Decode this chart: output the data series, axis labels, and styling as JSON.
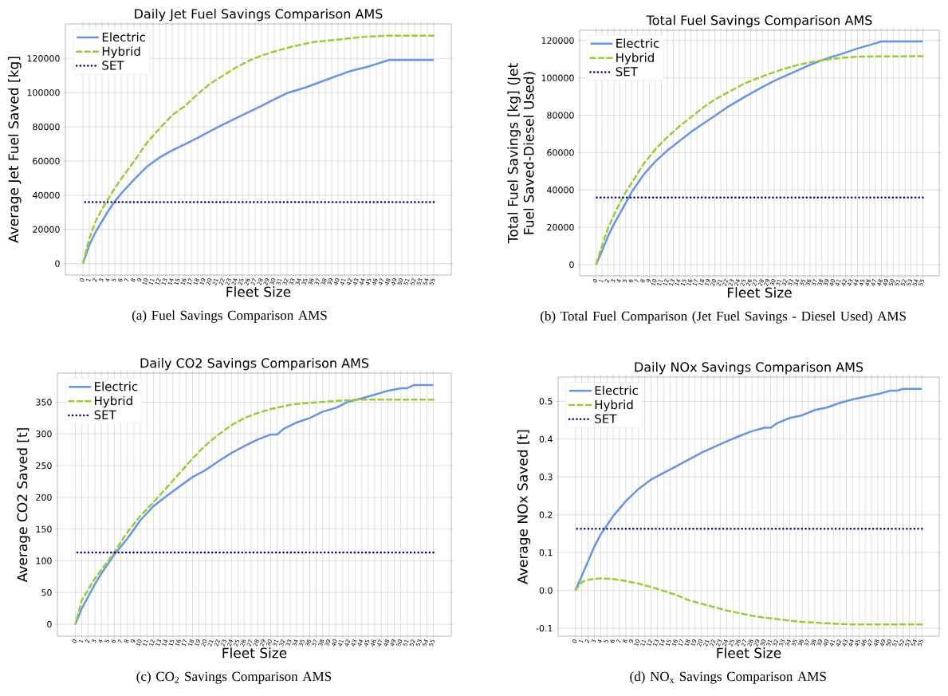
{
  "chart_data": [
    {
      "type": "line",
      "title": "Daily Jet Fuel Savings Comparison AMS",
      "xlabel": "Fleet Size",
      "ylabel": "Average Jet Fuel Saved [kg]",
      "annotations": [
        "(a) Fuel Savings Comparison AMS"
      ],
      "xlim": [
        -2.75,
        57.75
      ],
      "xticks": [
        0,
        1,
        2,
        3,
        4,
        5,
        6,
        7,
        8,
        9,
        10,
        11,
        12,
        13,
        14,
        15,
        16,
        17,
        18,
        19,
        20,
        21,
        22,
        23,
        24,
        25,
        26,
        27,
        28,
        29,
        30,
        31,
        32,
        33,
        34,
        35,
        36,
        37,
        38,
        39,
        40,
        41,
        42,
        43,
        44,
        45,
        46,
        47,
        48,
        49,
        50,
        51,
        52,
        53,
        54,
        55
      ],
      "ylim": [
        -6675,
        140175
      ],
      "yticks": [
        0,
        20000,
        40000,
        60000,
        80000,
        100000,
        120000
      ],
      "grid": true,
      "legend": "top left",
      "series": [
        {
          "name": "Electric",
          "color": "#6495ed",
          "line_style": "solid",
          "x": [
            0,
            1,
            2,
            3,
            4,
            5,
            6,
            8,
            10,
            12,
            14,
            16,
            18,
            20,
            22,
            25,
            28,
            30,
            32,
            35,
            38,
            40,
            42,
            45,
            48,
            55
          ],
          "values": [
            0,
            10900,
            18600,
            24800,
            31000,
            36400,
            41000,
            49100,
            56600,
            62000,
            66200,
            69800,
            73600,
            77500,
            81400,
            86800,
            92200,
            96100,
            99700,
            103100,
            107300,
            110000,
            112700,
            115500,
            119100,
            119100
          ]
        },
        {
          "name": "Hybrid",
          "color": "#9acd32",
          "line_style": "dashed",
          "x": [
            0,
            1,
            2,
            3,
            4,
            5,
            6,
            8,
            10,
            12,
            14,
            16,
            18,
            20,
            22,
            24,
            26,
            28,
            30,
            33,
            36,
            40,
            44,
            48,
            55
          ],
          "values": [
            0,
            14700,
            24800,
            31800,
            38000,
            44200,
            49600,
            59700,
            70500,
            79000,
            86800,
            92200,
            99200,
            105400,
            110000,
            114700,
            118600,
            121700,
            124000,
            127100,
            129500,
            131000,
            132600,
            133300,
            133300
          ]
        },
        {
          "name": "SET",
          "color": "#00008b",
          "line_style": "dotted",
          "x": [
            0,
            55
          ],
          "values": [
            36000,
            36000
          ]
        }
      ]
    },
    {
      "type": "line",
      "title": "Total Fuel Savings Comparison AMS",
      "xlabel": "Fleet Size",
      "ylabel": "Total Fuel Savings [kg] (Jet Fuel Saved-Diesel Used)",
      "annotations": [
        "(b) Total Fuel Comparison (Jet Fuel Savings - Diesel Used) AMS"
      ],
      "xlim": [
        -2.75,
        57.75
      ],
      "xticks": [
        0,
        1,
        2,
        3,
        4,
        5,
        6,
        7,
        8,
        9,
        10,
        11,
        12,
        13,
        14,
        15,
        16,
        17,
        18,
        19,
        20,
        21,
        22,
        23,
        24,
        25,
        26,
        27,
        28,
        29,
        30,
        31,
        32,
        33,
        34,
        35,
        36,
        37,
        38,
        39,
        40,
        41,
        42,
        43,
        44,
        45,
        46,
        47,
        48,
        49,
        50,
        51,
        52,
        53,
        54,
        55
      ],
      "ylim": [
        -5975,
        125475
      ],
      "yticks": [
        0,
        20000,
        40000,
        60000,
        80000,
        100000,
        120000
      ],
      "grid": true,
      "legend": "top left",
      "series": [
        {
          "name": "Electric",
          "color": "#6495ed",
          "line_style": "solid",
          "x": [
            0,
            1,
            2,
            3,
            4,
            5,
            6,
            8,
            10,
            12,
            14,
            16,
            18,
            20,
            22,
            25,
            28,
            30,
            33,
            36,
            39,
            41,
            44,
            47,
            48,
            55
          ],
          "values": [
            0,
            7200,
            15100,
            21600,
            27300,
            33000,
            38900,
            48100,
            55300,
            61100,
            66100,
            71100,
            75400,
            79700,
            84100,
            89800,
            95100,
            98400,
            102700,
            107000,
            110600,
            112500,
            115700,
            118500,
            119500,
            119500
          ]
        },
        {
          "name": "Hybrid",
          "color": "#9acd32",
          "line_style": "dashed",
          "x": [
            0,
            1,
            2,
            3,
            4,
            5,
            6,
            8,
            10,
            12,
            14,
            16,
            18,
            20,
            22,
            25,
            28,
            31,
            34,
            37,
            40,
            44,
            55
          ],
          "values": [
            0,
            10100,
            19400,
            26600,
            33000,
            38800,
            43800,
            53900,
            61800,
            68200,
            74000,
            79000,
            84100,
            88400,
            91900,
            97000,
            100800,
            104200,
            107000,
            108900,
            110300,
            111400,
            111600
          ]
        },
        {
          "name": "SET",
          "color": "#00008b",
          "line_style": "dotted",
          "x": [
            0,
            55
          ],
          "values": [
            36000,
            36000
          ]
        }
      ]
    },
    {
      "type": "line",
      "title": "Daily CO2 Savings Comparison AMS",
      "xlabel": "Fleet Size",
      "ylabel": "Average CO2 Saved [t]",
      "annotations": [
        "(c) CO$_{2}$ Savings Comparison AMS"
      ],
      "xlim": [
        -2.75,
        57.75
      ],
      "xticks": [
        0,
        1,
        2,
        3,
        4,
        5,
        6,
        7,
        8,
        9,
        10,
        11,
        12,
        13,
        14,
        15,
        16,
        17,
        18,
        19,
        20,
        21,
        22,
        23,
        24,
        25,
        26,
        27,
        28,
        29,
        30,
        31,
        32,
        33,
        34,
        35,
        36,
        37,
        38,
        39,
        40,
        41,
        42,
        43,
        44,
        45,
        46,
        47,
        48,
        49,
        50,
        51,
        52,
        53,
        54,
        55
      ],
      "ylim": [
        -18.85,
        395.85
      ],
      "yticks": [
        0,
        50,
        100,
        150,
        200,
        250,
        300,
        350
      ],
      "grid": true,
      "legend": "top left",
      "series": [
        {
          "name": "Electric",
          "color": "#6495ed",
          "line_style": "solid",
          "x": [
            0,
            1,
            2,
            3,
            4,
            5,
            6,
            8,
            10,
            12,
            14,
            16,
            18,
            20,
            22,
            24,
            26,
            28,
            30,
            31,
            32,
            34,
            36,
            38,
            40,
            42,
            44,
            46,
            48,
            50,
            51,
            52,
            55
          ],
          "values": [
            0,
            25,
            44,
            63,
            80,
            95,
            110,
            135,
            164,
            186,
            202,
            217,
            232,
            243,
            257,
            270,
            281,
            291,
            299,
            299,
            308,
            318,
            325,
            335,
            341,
            351,
            356,
            362,
            368,
            372,
            372,
            377,
            377
          ]
        },
        {
          "name": "Hybrid",
          "color": "#9acd32",
          "line_style": "dashed",
          "x": [
            0,
            1,
            2,
            3,
            4,
            5,
            6,
            8,
            10,
            12,
            14,
            16,
            18,
            20,
            22,
            24,
            26,
            28,
            30,
            33,
            36,
            40,
            44,
            55
          ],
          "values": [
            0,
            38,
            55,
            72,
            86,
            99,
            114,
            145,
            171,
            192,
            215,
            238,
            261,
            282,
            299,
            314,
            325,
            333,
            339,
            346,
            349,
            352,
            354,
            354
          ]
        },
        {
          "name": "SET",
          "color": "#00008b",
          "line_style": "dotted",
          "x": [
            0,
            55
          ],
          "values": [
            113,
            113
          ]
        }
      ]
    },
    {
      "type": "line",
      "title": "Daily NOx Savings Comparison AMS",
      "xlabel": "Fleet Size",
      "ylabel": "Average NOx Saved [t]",
      "annotations": [
        "(d) NO$_{x}$ Savings Comparison AMS"
      ],
      "xlim": [
        -2.75,
        57.75
      ],
      "xticks": [
        0,
        1,
        2,
        3,
        4,
        5,
        6,
        7,
        8,
        9,
        10,
        11,
        12,
        13,
        14,
        15,
        16,
        17,
        18,
        19,
        20,
        21,
        22,
        23,
        24,
        25,
        26,
        27,
        28,
        29,
        30,
        31,
        32,
        33,
        34,
        35,
        36,
        37,
        38,
        39,
        40,
        41,
        42,
        43,
        44,
        45,
        46,
        47,
        48,
        49,
        50,
        51,
        52,
        53,
        54,
        55
      ],
      "ylim": [
        -0.121,
        0.564
      ],
      "yticks": [
        -0.1,
        {
          "value": 0,
          "label": "0.0"
        },
        0.1,
        0.2,
        0.3,
        0.4,
        0.5
      ],
      "grid": true,
      "legend": "top left",
      "series": [
        {
          "name": "Electric",
          "color": "#6495ed",
          "line_style": "solid",
          "x": [
            0,
            1,
            2,
            3,
            4,
            5,
            6,
            8,
            10,
            12,
            14,
            16,
            18,
            20,
            22,
            24,
            26,
            28,
            30,
            31,
            32,
            34,
            36,
            38,
            40,
            42,
            44,
            46,
            48,
            50,
            51,
            52,
            55
          ],
          "values": [
            0,
            0.038,
            0.077,
            0.116,
            0.148,
            0.172,
            0.197,
            0.236,
            0.268,
            0.293,
            0.311,
            0.328,
            0.346,
            0.364,
            0.379,
            0.394,
            0.408,
            0.421,
            0.43,
            0.43,
            0.442,
            0.456,
            0.463,
            0.477,
            0.484,
            0.496,
            0.505,
            0.512,
            0.519,
            0.528,
            0.528,
            0.533,
            0.533
          ]
        },
        {
          "name": "Hybrid",
          "color": "#9acd32",
          "line_style": "dashed",
          "x": [
            0,
            1,
            2,
            4,
            6,
            8,
            10,
            12,
            14,
            16,
            18,
            20,
            22,
            24,
            26,
            28,
            30,
            33,
            36,
            40,
            44,
            55
          ],
          "values": [
            0,
            0.022,
            0.028,
            0.032,
            0.03,
            0.025,
            0.018,
            0.009,
            -0.001,
            -0.012,
            -0.026,
            -0.035,
            -0.044,
            -0.053,
            -0.06,
            -0.067,
            -0.072,
            -0.078,
            -0.083,
            -0.087,
            -0.09,
            -0.09
          ]
        },
        {
          "name": "SET",
          "color": "#00008b",
          "line_style": "dotted",
          "x": [
            0,
            55
          ],
          "values": [
            0.163,
            0.163
          ]
        }
      ]
    }
  ]
}
